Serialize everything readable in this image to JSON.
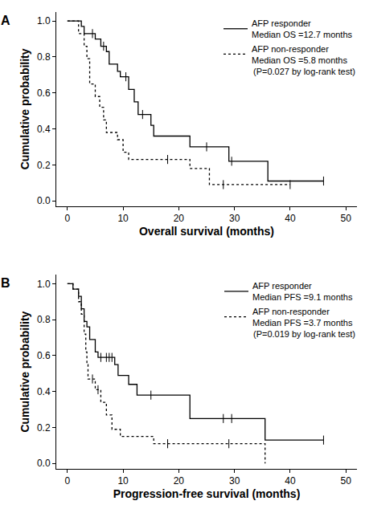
{
  "chart_data": [
    {
      "type": "line",
      "title": "A",
      "x_label": "Overall survival (months)",
      "y_label": "Cumulative probability",
      "xlim": [
        -2,
        52
      ],
      "xticks": [
        0,
        10,
        20,
        30,
        40,
        50
      ],
      "ylim": [
        -0.03,
        1.05
      ],
      "yticks": [
        {
          "value": 0,
          "label": "0.0"
        },
        {
          "value": 0.2,
          "label": "0.2"
        },
        {
          "value": 0.4,
          "label": "0.4"
        },
        {
          "value": 0.6,
          "label": "0.6"
        },
        {
          "value": 0.8,
          "label": "0.8"
        },
        {
          "value": 1,
          "label": "1.0"
        }
      ],
      "grid": false,
      "legend": "upper right",
      "annotations": [
        "(P=0.027 by log-rank test)"
      ],
      "series": [
        {
          "name": "AFP responder",
          "annotation": "Median OS =12.7 months",
          "color": "#000000",
          "line_style": "solid",
          "marker": "vertical-tick",
          "x": [
            0,
            2.5,
            3,
            5,
            6,
            7,
            7.5,
            9,
            9.5,
            11,
            12,
            12.7,
            15,
            15.5,
            22,
            29,
            36,
            46
          ],
          "values": [
            1,
            0.97,
            0.93,
            0.9,
            0.86,
            0.83,
            0.76,
            0.72,
            0.69,
            0.62,
            0.55,
            0.48,
            0.42,
            0.36,
            0.3,
            0.22,
            0.11,
            0.11
          ],
          "censored_x": [
            4.5,
            6.5,
            10.5,
            13.5,
            25,
            29.5,
            46
          ],
          "censored_values": [
            0.93,
            0.86,
            0.69,
            0.48,
            0.3,
            0.22,
            0.11
          ]
        },
        {
          "name": "AFP non-responder",
          "annotation": "Median OS =5.8 months",
          "color": "#000000",
          "line_style": "dotted",
          "marker": "vertical-tick",
          "x": [
            0,
            2,
            3,
            3.5,
            4,
            5,
            5.8,
            6.5,
            7,
            9,
            10,
            11,
            22,
            25.5,
            40
          ],
          "values": [
            1,
            0.93,
            0.86,
            0.79,
            0.65,
            0.58,
            0.52,
            0.45,
            0.38,
            0.34,
            0.27,
            0.23,
            0.18,
            0.09,
            0.09
          ],
          "censored_x": [
            18,
            28,
            40
          ],
          "censored_values": [
            0.23,
            0.09,
            0.09
          ]
        }
      ]
    },
    {
      "type": "line",
      "title": "B",
      "x_label": "Progression-free survival (months)",
      "y_label": "Cumulative probability",
      "xlim": [
        -2,
        52
      ],
      "xticks": [
        0,
        10,
        20,
        30,
        40,
        50
      ],
      "ylim": [
        -0.03,
        1.05
      ],
      "yticks": [
        {
          "value": 0,
          "label": "0.0"
        },
        {
          "value": 0.2,
          "label": "0.2"
        },
        {
          "value": 0.4,
          "label": "0.4"
        },
        {
          "value": 0.6,
          "label": "0.6"
        },
        {
          "value": 0.8,
          "label": "0.8"
        },
        {
          "value": 1,
          "label": "1.0"
        }
      ],
      "grid": false,
      "legend": "upper right",
      "annotations": [
        "(P=0.019 by log-rank test)"
      ],
      "series": [
        {
          "name": "AFP responder",
          "annotation": "Median PFS =9.1 months",
          "color": "#000000",
          "line_style": "solid",
          "marker": "vertical-tick",
          "x": [
            0,
            1,
            2,
            2.5,
            3,
            3.5,
            4,
            5,
            5.5,
            8.5,
            9.1,
            11,
            12.5,
            22,
            35.5,
            46
          ],
          "values": [
            1,
            0.97,
            0.93,
            0.86,
            0.79,
            0.76,
            0.69,
            0.62,
            0.59,
            0.55,
            0.49,
            0.44,
            0.38,
            0.25,
            0.13,
            0.13
          ],
          "censored_x": [
            6,
            7,
            7.5,
            8,
            15,
            28,
            29.5,
            46
          ],
          "censored_values": [
            0.59,
            0.59,
            0.59,
            0.59,
            0.38,
            0.25,
            0.25,
            0.13
          ]
        },
        {
          "name": "AFP non-responder",
          "annotation": "Median PFS =3.7 months",
          "color": "#000000",
          "line_style": "dotted",
          "marker": "vertical-tick",
          "x": [
            0,
            1,
            2,
            2.5,
            3,
            3.3,
            3.5,
            3.7,
            5,
            6,
            7,
            8,
            9.5,
            15.5,
            35.5
          ],
          "values": [
            1,
            0.97,
            0.9,
            0.83,
            0.72,
            0.62,
            0.55,
            0.47,
            0.41,
            0.34,
            0.27,
            0.19,
            0.15,
            0.11,
            0
          ],
          "censored_x": [
            4.5,
            5.5,
            18,
            29
          ],
          "censored_values": [
            0.47,
            0.41,
            0.11,
            0.11
          ]
        }
      ]
    }
  ]
}
